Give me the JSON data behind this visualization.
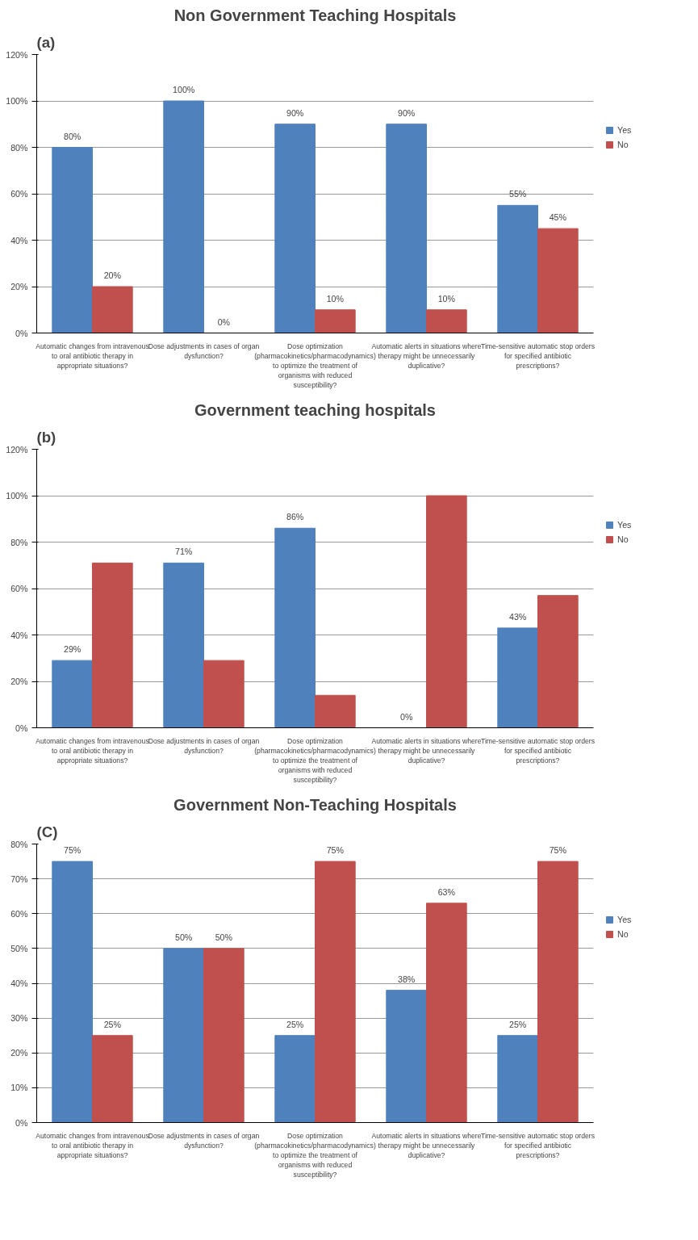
{
  "chart_data": [
    {
      "type": "bar",
      "title": "Non Government Teaching Hospitals",
      "annotations": [
        "(a)"
      ],
      "categories": [
        "Automatic changes from intravenous to oral antibiotic therapy in appropriate situations?",
        "Dose adjustments in cases of organ dysfunction?",
        "Dose optimization (pharmacokinetics/pharmacodynamics) to optimize the treatment of organisms with reduced susceptibility?",
        "Automatic alerts in situations where therapy might be unnecessarily duplicative?",
        "Time-sensitive automatic stop orders for specified antibiotic prescriptions?"
      ],
      "series": [
        {
          "name": "Yes",
          "color": "#4f81bd",
          "values": [
            80,
            100,
            90,
            90,
            55
          ],
          "value_labels": [
            "80%",
            "100%",
            "90%",
            "90%",
            "55%"
          ]
        },
        {
          "name": "No",
          "color": "#c0504d",
          "values": [
            20,
            0,
            10,
            10,
            45
          ],
          "value_labels": [
            "20%",
            "0%",
            "10%",
            "10%",
            "45%"
          ]
        }
      ],
      "ylim": [
        0,
        120
      ],
      "yticks": [
        {
          "value": 0,
          "label": "0%"
        },
        {
          "value": 20,
          "label": "20%"
        },
        {
          "value": 40,
          "label": "40%"
        },
        {
          "value": 60,
          "label": "60%"
        },
        {
          "value": 80,
          "label": "80%"
        },
        {
          "value": 100,
          "label": "100%"
        },
        {
          "value": 120,
          "label": "120%"
        }
      ],
      "grid": "y",
      "legend": "right"
    },
    {
      "type": "bar",
      "title": "Government teaching hospitals",
      "annotations": [
        "(b)"
      ],
      "categories": [
        "Automatic changes from intravenous to oral antibiotic therapy in appropriate situations?",
        "Dose adjustments in cases of organ dysfunction?",
        "Dose optimization (pharmacokinetics/pharmacodynamics) to optimize the treatment of organisms with reduced susceptibility?",
        "Automatic alerts in situations where therapy might be unnecessarily duplicative?",
        "Time-sensitive automatic stop orders for specified antibiotic prescriptions?"
      ],
      "series": [
        {
          "name": "Yes",
          "color": "#4f81bd",
          "values": [
            29,
            71,
            86,
            0,
            43
          ],
          "value_labels": [
            "29%",
            "71%",
            "86%",
            "0%",
            "43%"
          ]
        },
        {
          "name": "No",
          "color": "#c0504d",
          "values": [
            71,
            29,
            14,
            100,
            57
          ],
          "value_labels": [
            null,
            null,
            null,
            null,
            null
          ]
        }
      ],
      "ylim": [
        0,
        120
      ],
      "yticks": [
        {
          "value": 0,
          "label": "0%"
        },
        {
          "value": 20,
          "label": "20%"
        },
        {
          "value": 40,
          "label": "40%"
        },
        {
          "value": 60,
          "label": "60%"
        },
        {
          "value": 80,
          "label": "80%"
        },
        {
          "value": 100,
          "label": "100%"
        },
        {
          "value": 120,
          "label": "120%"
        }
      ],
      "grid": "y",
      "legend": "right"
    },
    {
      "type": "bar",
      "title": "Government Non-Teaching Hospitals",
      "annotations": [
        "(C)"
      ],
      "categories": [
        "Automatic changes from intravenous to oral antibiotic therapy in appropriate situations?",
        "Dose adjustments in cases of organ dysfunction?",
        "Dose optimization (pharmacokinetics/pharmacodynamics) to optimize the treatment of organisms with reduced susceptibility?",
        "Automatic alerts in situations where therapy might be unnecessarily duplicative?",
        "Time-sensitive automatic stop orders for specified antibiotic prescriptions?"
      ],
      "series": [
        {
          "name": "Yes",
          "color": "#4f81bd",
          "values": [
            75,
            50,
            25,
            38,
            25
          ],
          "value_labels": [
            "75%",
            "50%",
            "25%",
            "38%",
            "25%"
          ]
        },
        {
          "name": "No",
          "color": "#c0504d",
          "values": [
            25,
            50,
            75,
            63,
            75
          ],
          "value_labels": [
            "25%",
            "50%",
            "75%",
            "63%",
            "75%"
          ]
        }
      ],
      "ylim": [
        0,
        80
      ],
      "yticks": [
        {
          "value": 0,
          "label": "0%"
        },
        {
          "value": 10,
          "label": "10%"
        },
        {
          "value": 20,
          "label": "20%"
        },
        {
          "value": 30,
          "label": "30%"
        },
        {
          "value": 40,
          "label": "40%"
        },
        {
          "value": 50,
          "label": "50%"
        },
        {
          "value": 60,
          "label": "60%"
        },
        {
          "value": 70,
          "label": "70%"
        },
        {
          "value": 80,
          "label": "80%"
        }
      ],
      "grid": "y",
      "legend": "right"
    }
  ]
}
